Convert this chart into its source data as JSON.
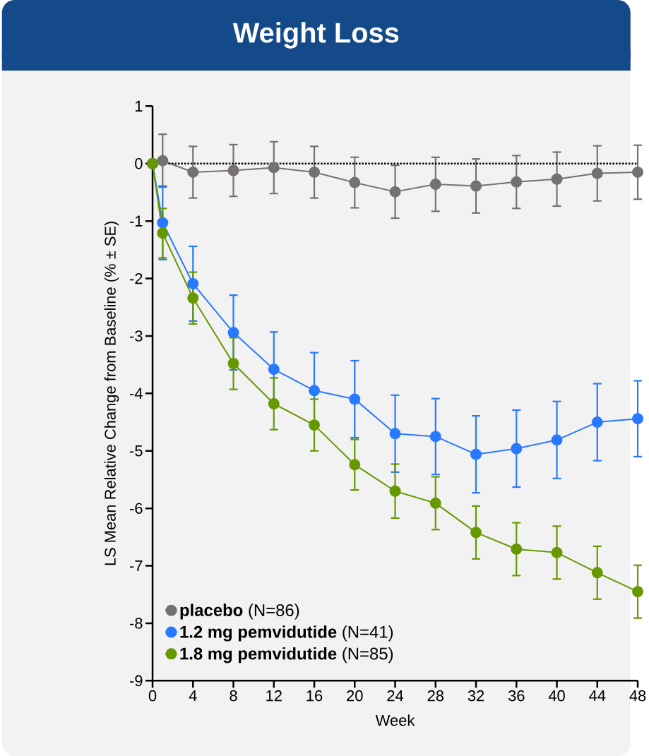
{
  "chart_data": {
    "type": "line",
    "title": "Weight Loss",
    "xlabel": "Week",
    "ylabel": "LS Mean Relative Change from Baseline (% ± SE)",
    "x": [
      0,
      1,
      4,
      8,
      12,
      16,
      20,
      24,
      28,
      32,
      36,
      40,
      44,
      48
    ],
    "series": [
      {
        "name": "**placebo** (N=86)",
        "color": "#757171",
        "values": [
          0,
          0.05,
          -0.15,
          -0.12,
          -0.07,
          -0.15,
          -0.33,
          -0.49,
          -0.36,
          -0.39,
          -0.32,
          -0.27,
          -0.17,
          -0.15
        ],
        "errors": [
          null,
          0.46,
          0.45,
          0.45,
          0.45,
          0.45,
          0.44,
          0.46,
          0.47,
          0.47,
          0.46,
          0.47,
          0.48,
          0.47
        ]
      },
      {
        "name": "**1.2 mg pemvidutide** (N=41)",
        "color": "#2979ff",
        "values": [
          0,
          -1.03,
          -2.09,
          -2.94,
          -3.58,
          -3.95,
          -4.1,
          -4.7,
          -4.75,
          -5.06,
          -4.96,
          -4.81,
          -4.5,
          -4.44
        ],
        "errors": [
          null,
          0.64,
          0.65,
          0.65,
          0.65,
          0.66,
          0.67,
          0.67,
          0.66,
          0.67,
          0.67,
          0.67,
          0.67,
          0.66
        ]
      },
      {
        "name": "**1.8 mg pemvidutide** (N=85)",
        "color": "#669900",
        "values": [
          0,
          -1.21,
          -2.34,
          -3.48,
          -4.18,
          -4.55,
          -5.24,
          -5.7,
          -5.91,
          -6.42,
          -6.71,
          -6.77,
          -7.12,
          -7.45
        ],
        "errors": [
          null,
          0.43,
          0.45,
          0.45,
          0.45,
          0.45,
          0.44,
          0.47,
          0.46,
          0.46,
          0.46,
          0.46,
          0.46,
          0.46
        ]
      }
    ],
    "xlim": [
      0,
      48
    ],
    "ylim": [
      -9,
      1
    ],
    "xticks": [
      0,
      4,
      8,
      12,
      16,
      20,
      24,
      28,
      32,
      36,
      40,
      44,
      48
    ],
    "yticks": [
      -9,
      -8,
      -7,
      -6,
      -5,
      -4,
      -3,
      -2,
      -1,
      0,
      1
    ],
    "ref_lines": [
      {
        "axis": "y",
        "value": 0,
        "color": "#000000",
        "line_style": "dotted"
      }
    ],
    "legend": "bottom left",
    "marker": "circle"
  }
}
